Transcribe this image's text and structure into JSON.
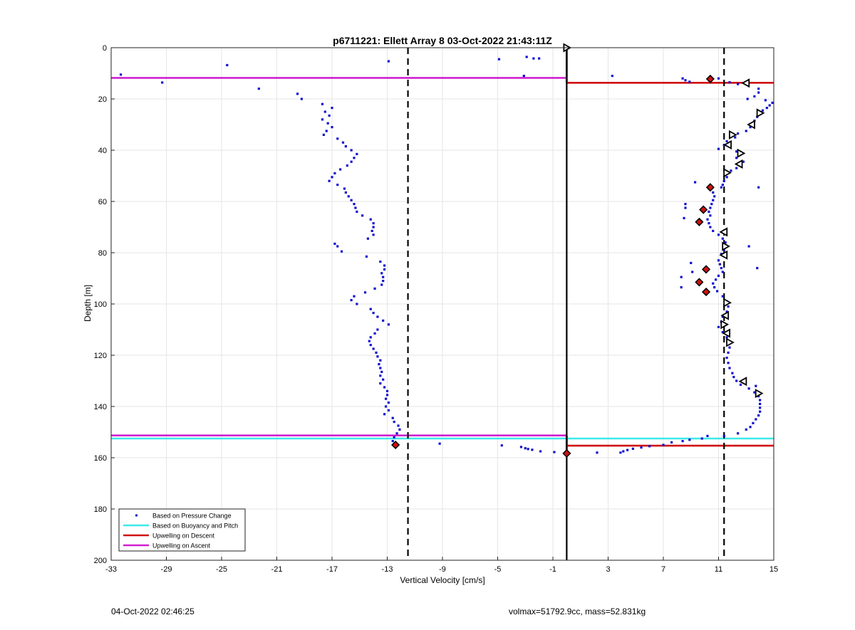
{
  "chart_data": {
    "type": "scatter",
    "title": "p6711221: Ellett Array 8 03-Oct-2022 21:43:11Z",
    "xlabel": "Vertical Velocity [cm/s]",
    "ylabel": "Depth [m]",
    "xlim": [
      -33,
      15
    ],
    "ylim": [
      0,
      200
    ],
    "y_reversed": true,
    "grid": true,
    "legend_position": "bottom-left",
    "xticks": [
      -33,
      -29,
      -25,
      -21,
      -17,
      -13,
      -9,
      -5,
      -1,
      3,
      7,
      11,
      15
    ],
    "yticks": [
      0,
      20,
      40,
      60,
      80,
      100,
      120,
      140,
      160,
      180,
      200
    ],
    "colors": {
      "pressure": "#1010d0",
      "buoyancy": "#3fe8e8",
      "descent": "#d01010",
      "ascent": "#d020d0",
      "axis": "#000000"
    },
    "series": [
      {
        "name": "Based on Pressure Change",
        "kind": "points",
        "points": [
          [
            -32.3,
            10.5
          ],
          [
            -29.3,
            13.6
          ],
          [
            -24.6,
            6.8
          ],
          [
            -22.3,
            16.0
          ],
          [
            -12.9,
            5.3
          ],
          [
            -4.9,
            4.5
          ],
          [
            -2.9,
            3.6
          ],
          [
            -2.4,
            4.2
          ],
          [
            -2.0,
            4.2
          ],
          [
            -3.1,
            11.0
          ],
          [
            -19.5,
            18.0
          ],
          [
            -19.2,
            20.0
          ],
          [
            -17.7,
            22.0
          ],
          [
            -17.0,
            23.5
          ],
          [
            -17.5,
            25.0
          ],
          [
            -17.2,
            26.5
          ],
          [
            -17.7,
            28.0
          ],
          [
            -17.3,
            29.5
          ],
          [
            -17.0,
            31.0
          ],
          [
            -17.4,
            32.5
          ],
          [
            -17.6,
            34.0
          ],
          [
            -16.6,
            35.5
          ],
          [
            -16.2,
            37.0
          ],
          [
            -16.0,
            38.5
          ],
          [
            -15.6,
            40.0
          ],
          [
            -15.2,
            41.5
          ],
          [
            -15.4,
            43.0
          ],
          [
            -15.6,
            44.5
          ],
          [
            -15.9,
            46.0
          ],
          [
            -16.4,
            47.5
          ],
          [
            -16.8,
            49.0
          ],
          [
            -17.0,
            50.5
          ],
          [
            -17.2,
            52.0
          ],
          [
            -16.6,
            53.5
          ],
          [
            -16.1,
            55.0
          ],
          [
            -16.0,
            56.5
          ],
          [
            -15.8,
            58.0
          ],
          [
            -15.6,
            59.5
          ],
          [
            -15.4,
            61.0
          ],
          [
            -15.3,
            62.5
          ],
          [
            -15.2,
            64.0
          ],
          [
            -14.8,
            65.5
          ],
          [
            -14.2,
            67.0
          ],
          [
            -14.0,
            68.5
          ],
          [
            -14.0,
            70.0
          ],
          [
            -14.1,
            71.5
          ],
          [
            -14.0,
            73.0
          ],
          [
            -14.4,
            74.5
          ],
          [
            -16.8,
            76.5
          ],
          [
            -16.6,
            77.5
          ],
          [
            -16.3,
            79.5
          ],
          [
            -14.5,
            81.5
          ],
          [
            -13.5,
            83.5
          ],
          [
            -13.2,
            85.0
          ],
          [
            -13.2,
            86.5
          ],
          [
            -13.4,
            88.0
          ],
          [
            -13.3,
            89.5
          ],
          [
            -13.3,
            91.0
          ],
          [
            -13.4,
            92.5
          ],
          [
            -13.9,
            94.0
          ],
          [
            -14.6,
            95.5
          ],
          [
            -15.4,
            97.0
          ],
          [
            -15.6,
            98.5
          ],
          [
            -15.2,
            100.0
          ],
          [
            -14.2,
            102.0
          ],
          [
            -14.0,
            103.5
          ],
          [
            -13.7,
            105.0
          ],
          [
            -13.3,
            106.5
          ],
          [
            -12.9,
            108.0
          ],
          [
            -13.7,
            110.0
          ],
          [
            -13.9,
            111.5
          ],
          [
            -14.2,
            113.0
          ],
          [
            -14.3,
            114.5
          ],
          [
            -14.2,
            116.0
          ],
          [
            -14.0,
            117.5
          ],
          [
            -13.8,
            119.0
          ],
          [
            -13.7,
            120.5
          ],
          [
            -13.5,
            122.0
          ],
          [
            -13.6,
            123.5
          ],
          [
            -13.5,
            125.0
          ],
          [
            -13.4,
            126.5
          ],
          [
            -13.5,
            128.0
          ],
          [
            -13.3,
            129.5
          ],
          [
            -13.5,
            131.0
          ],
          [
            -13.2,
            132.5
          ],
          [
            -13.0,
            134.0
          ],
          [
            -13.0,
            135.5
          ],
          [
            -13.1,
            137.0
          ],
          [
            -12.9,
            138.5
          ],
          [
            -13.1,
            140.0
          ],
          [
            -12.9,
            141.5
          ],
          [
            -13.2,
            143.0
          ],
          [
            -12.6,
            144.5
          ],
          [
            -12.5,
            146.0
          ],
          [
            -12.2,
            147.5
          ],
          [
            -12.1,
            149.0
          ],
          [
            -12.3,
            150.5
          ],
          [
            -12.5,
            152.0
          ],
          [
            -12.6,
            153.5
          ],
          [
            -12.5,
            155.0
          ],
          [
            -9.2,
            154.5
          ],
          [
            -4.7,
            155.2
          ],
          [
            -3.3,
            155.8
          ],
          [
            -3.0,
            156.3
          ],
          [
            -2.8,
            156.6
          ],
          [
            -2.5,
            156.9
          ],
          [
            -1.9,
            157.5
          ],
          [
            -0.9,
            157.8
          ],
          [
            2.2,
            158.0
          ],
          [
            3.3,
            11.0
          ],
          [
            8.4,
            12.0
          ],
          [
            8.6,
            12.7
          ],
          [
            8.9,
            13.3
          ],
          [
            10.4,
            12.5
          ],
          [
            11.0,
            12.0
          ],
          [
            11.8,
            13.5
          ],
          [
            12.4,
            14.2
          ],
          [
            13.9,
            16.0
          ],
          [
            13.9,
            17.5
          ],
          [
            13.6,
            19.0
          ],
          [
            13.1,
            20.0
          ],
          [
            14.4,
            20.5
          ],
          [
            14.9,
            21.5
          ],
          [
            14.7,
            22.5
          ],
          [
            14.5,
            23.5
          ],
          [
            14.2,
            24.5
          ],
          [
            14.0,
            25.5
          ],
          [
            13.8,
            27.0
          ],
          [
            13.6,
            28.5
          ],
          [
            13.3,
            31.0
          ],
          [
            13.0,
            32.5
          ],
          [
            12.4,
            33.5
          ],
          [
            12.2,
            35.0
          ],
          [
            11.6,
            36.5
          ],
          [
            11.4,
            38.0
          ],
          [
            11.0,
            39.5
          ],
          [
            12.3,
            40.5
          ],
          [
            12.3,
            43.0
          ],
          [
            12.8,
            44.5
          ],
          [
            12.6,
            46.0
          ],
          [
            12.3,
            47.0
          ],
          [
            11.9,
            48.0
          ],
          [
            11.6,
            50.5
          ],
          [
            11.4,
            52.0
          ],
          [
            11.3,
            53.5
          ],
          [
            11.2,
            54.5
          ],
          [
            9.3,
            52.5
          ],
          [
            13.9,
            54.5
          ],
          [
            10.6,
            56.5
          ],
          [
            10.7,
            58.0
          ],
          [
            10.6,
            59.5
          ],
          [
            10.5,
            61.0
          ],
          [
            10.4,
            62.5
          ],
          [
            10.3,
            64.0
          ],
          [
            10.4,
            65.5
          ],
          [
            10.2,
            67.0
          ],
          [
            10.3,
            68.5
          ],
          [
            10.4,
            70.0
          ],
          [
            10.6,
            71.5
          ],
          [
            11.0,
            73.0
          ],
          [
            11.3,
            74.5
          ],
          [
            11.5,
            76.0
          ],
          [
            11.6,
            77.5
          ],
          [
            11.4,
            79.0
          ],
          [
            11.2,
            80.5
          ],
          [
            11.0,
            83.0
          ],
          [
            11.1,
            84.5
          ],
          [
            11.2,
            86.0
          ],
          [
            11.3,
            87.5
          ],
          [
            11.0,
            89.0
          ],
          [
            10.8,
            90.5
          ],
          [
            10.6,
            92.0
          ],
          [
            10.7,
            93.5
          ],
          [
            10.9,
            95.0
          ],
          [
            11.3,
            97.0
          ],
          [
            11.6,
            99.0
          ],
          [
            11.7,
            101.0
          ],
          [
            11.6,
            103.0
          ],
          [
            11.3,
            105.0
          ],
          [
            11.2,
            107.0
          ],
          [
            11.0,
            109.0
          ],
          [
            11.3,
            111.0
          ],
          [
            11.6,
            113.0
          ],
          [
            11.8,
            115.0
          ],
          [
            11.8,
            117.0
          ],
          [
            11.7,
            119.0
          ],
          [
            11.6,
            121.0
          ],
          [
            11.7,
            123.0
          ],
          [
            11.8,
            125.0
          ],
          [
            12.0,
            127.0
          ],
          [
            12.1,
            128.5
          ],
          [
            12.3,
            130.0
          ],
          [
            12.6,
            131.5
          ],
          [
            13.2,
            133.0
          ],
          [
            13.6,
            134.5
          ],
          [
            13.9,
            136.0
          ],
          [
            14.0,
            137.5
          ],
          [
            14.0,
            139.0
          ],
          [
            14.0,
            140.5
          ],
          [
            14.0,
            142.0
          ],
          [
            13.9,
            143.5
          ],
          [
            13.7,
            145.0
          ],
          [
            13.5,
            146.5
          ],
          [
            13.3,
            148.0
          ],
          [
            13.0,
            149.0
          ],
          [
            12.4,
            150.5
          ],
          [
            11.4,
            151.5
          ],
          [
            10.2,
            151.5
          ],
          [
            9.8,
            152.5
          ],
          [
            8.9,
            153.0
          ],
          [
            8.4,
            153.5
          ],
          [
            7.6,
            154.0
          ],
          [
            7.0,
            155.0
          ],
          [
            6.0,
            155.5
          ],
          [
            5.4,
            156.0
          ],
          [
            4.8,
            156.5
          ],
          [
            4.4,
            157.0
          ],
          [
            4.1,
            157.5
          ],
          [
            3.9,
            158.0
          ],
          [
            8.3,
            89.5
          ],
          [
            8.3,
            93.5
          ],
          [
            8.5,
            66.5
          ],
          [
            8.6,
            61.0
          ],
          [
            9.0,
            84.0
          ],
          [
            13.2,
            77.5
          ],
          [
            13.8,
            86.0
          ],
          [
            13.7,
            132.0
          ],
          [
            8.6,
            62.5
          ],
          [
            9.1,
            87.5
          ]
        ]
      },
      {
        "name": "Based on Buoyancy and Pitch",
        "kind": "hline",
        "segments": [
          [
            -33,
            15,
            152.5
          ]
        ]
      },
      {
        "name": "Upwelling on Descent",
        "kind": "hline",
        "segments": [
          [
            0,
            15,
            13.7
          ],
          [
            0,
            15,
            155.3
          ]
        ]
      },
      {
        "name": "Upwelling on Ascent",
        "kind": "hline",
        "segments": [
          [
            -33,
            0,
            11.8
          ],
          [
            -33,
            0,
            151.3
          ]
        ]
      }
    ],
    "reference_lines": [
      {
        "x": -11.5,
        "style": "dashed"
      },
      {
        "x": 11.4,
        "style": "dashed"
      },
      {
        "x": 0,
        "style": "solid"
      }
    ],
    "triangle_markers": [
      [
        0.0,
        0.0
      ],
      [
        13.0,
        13.8
      ],
      [
        14.0,
        25.5
      ],
      [
        13.4,
        30.0
      ],
      [
        12.0,
        34.0
      ],
      [
        11.7,
        37.9
      ],
      [
        12.6,
        41.2
      ],
      [
        12.5,
        45.4
      ],
      [
        11.6,
        48.8
      ],
      [
        11.4,
        71.9
      ],
      [
        11.5,
        77.5
      ],
      [
        11.4,
        80.9
      ],
      [
        11.6,
        99.5
      ],
      [
        11.5,
        104.5
      ],
      [
        11.4,
        108.0
      ],
      [
        11.6,
        111.4
      ],
      [
        11.8,
        115.0
      ],
      [
        12.8,
        130.2
      ],
      [
        13.9,
        134.9
      ]
    ],
    "red_markers": [
      [
        0.0,
        158.3
      ],
      [
        -12.4,
        155.0
      ],
      [
        10.4,
        12.2
      ],
      [
        10.4,
        54.5
      ],
      [
        9.9,
        63.2
      ],
      [
        9.6,
        68.0
      ],
      [
        10.1,
        86.5
      ],
      [
        9.6,
        91.5
      ],
      [
        10.1,
        95.3
      ]
    ]
  },
  "footer": {
    "left": "04-Oct-2022 02:46:25",
    "right": "volmax=51792.9cc, mass=52.831kg"
  }
}
